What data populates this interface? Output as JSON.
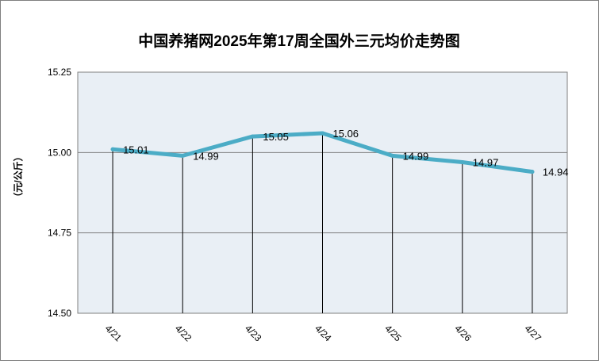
{
  "chart_data": {
    "type": "line",
    "title": "中国养猪网2025年第17周全国外三元均价走势图",
    "xlabel": "",
    "ylabel": "（元/公斤）",
    "categories": [
      "4/21",
      "4/22",
      "4/23",
      "4/24",
      "4/25",
      "4/26",
      "4/27"
    ],
    "series": [
      {
        "values": [
          15.01,
          14.99,
          15.05,
          15.06,
          14.99,
          14.97,
          14.94
        ]
      }
    ],
    "data_labels": [
      "15.01",
      "14.99",
      "15.05",
      "15.06",
      "14.99",
      "14.97",
      "14.94"
    ],
    "ylim": [
      14.5,
      15.25
    ],
    "yticks": [
      "14.50",
      "14.75",
      "15.00",
      "15.25"
    ],
    "grid": true,
    "drop_lines": true,
    "legend": "none",
    "colors": {
      "line": "#4bacc6",
      "plot_background": "#e9eff5",
      "gridline": "#7f7f7f",
      "drop_line": "#000000"
    }
  }
}
